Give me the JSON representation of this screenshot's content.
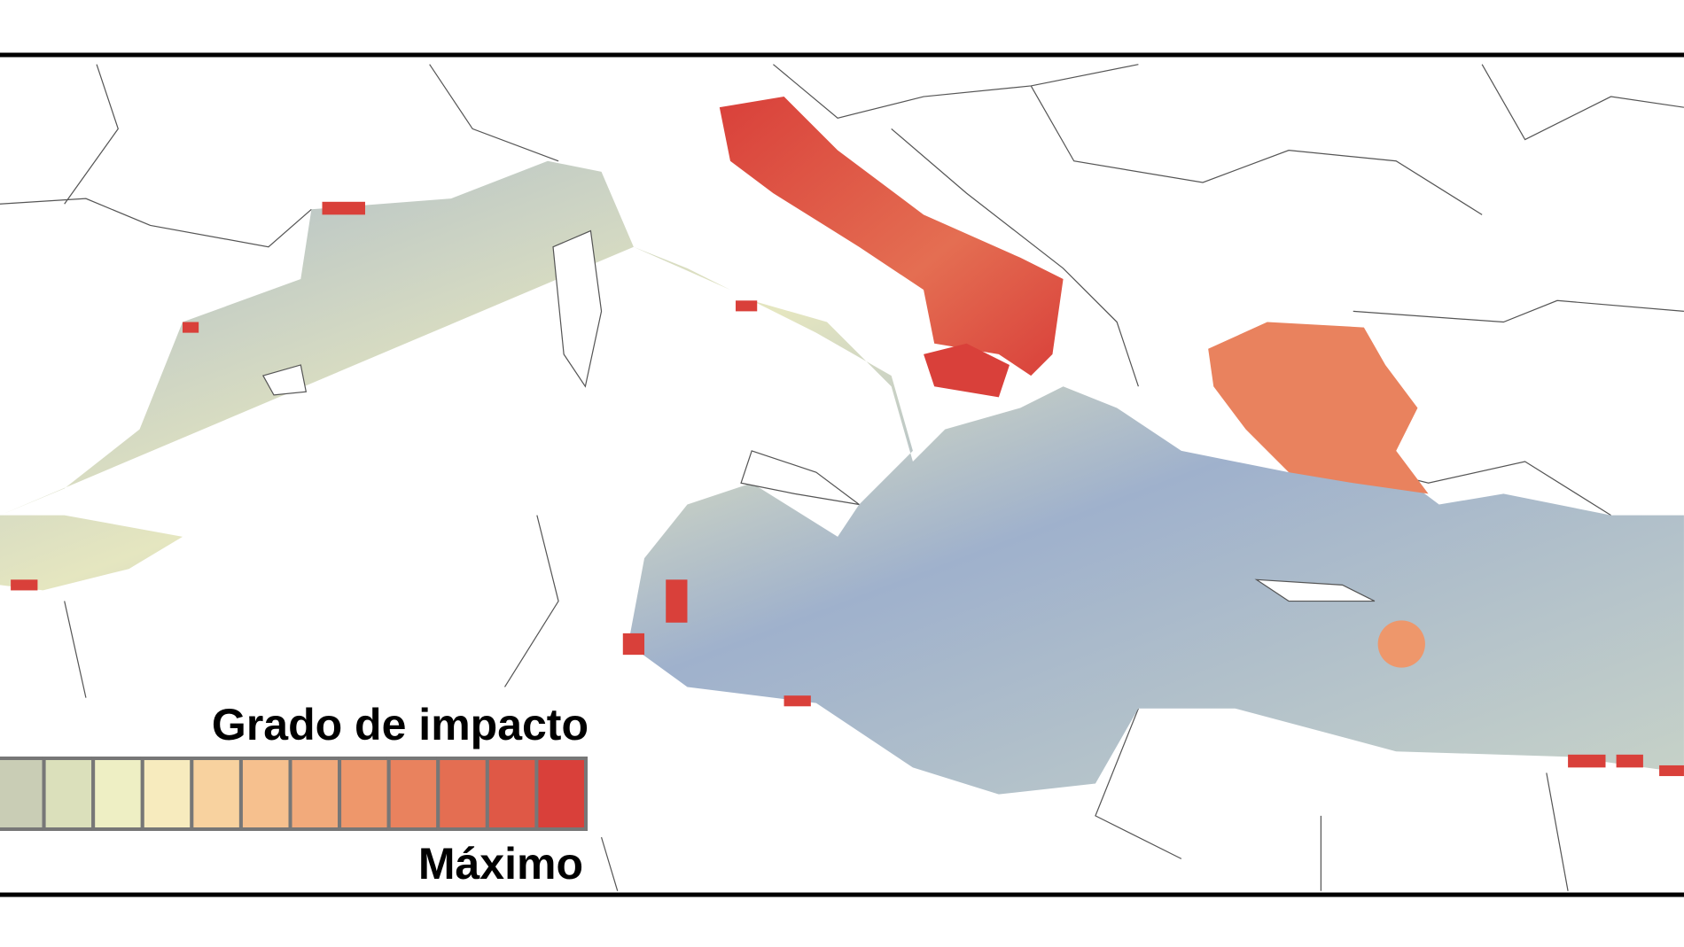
{
  "legend": {
    "title": "Grado de impacto",
    "max_label": "Máximo",
    "colors": [
      "#c9cdb5",
      "#dbe0bb",
      "#eeefc4",
      "#f7ebbe",
      "#f8d29f",
      "#f6c08e",
      "#f2aa7b",
      "#ee976b",
      "#e9825e",
      "#e46e52",
      "#df5846",
      "#d9403a"
    ]
  }
}
